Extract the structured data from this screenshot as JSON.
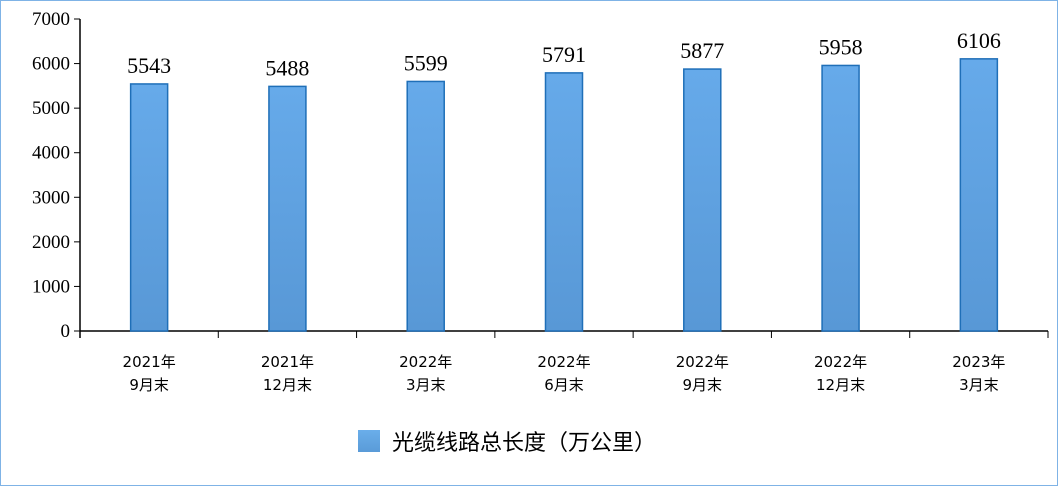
{
  "chart_data": {
    "type": "bar",
    "title": "",
    "xlabel": "",
    "ylabel": "",
    "categories": [
      [
        "2021年",
        "9月末"
      ],
      [
        "2021年",
        "12月末"
      ],
      [
        "2022年",
        "3月末"
      ],
      [
        "2022年",
        "6月末"
      ],
      [
        "2022年",
        "9月末"
      ],
      [
        "2022年",
        "12月末"
      ],
      [
        "2023年",
        "3月末"
      ]
    ],
    "series": [
      {
        "name": "光缆线路总长度（万公里）",
        "values": [
          5543,
          5488,
          5599,
          5791,
          5877,
          5958,
          6106
        ],
        "color": "#5fa3e4"
      }
    ],
    "ylim": [
      0,
      7000
    ],
    "yticks": [
      0,
      1000,
      2000,
      3000,
      4000,
      5000,
      6000,
      7000
    ],
    "grid": false,
    "legend_position": "bottom",
    "data_labels": true
  }
}
